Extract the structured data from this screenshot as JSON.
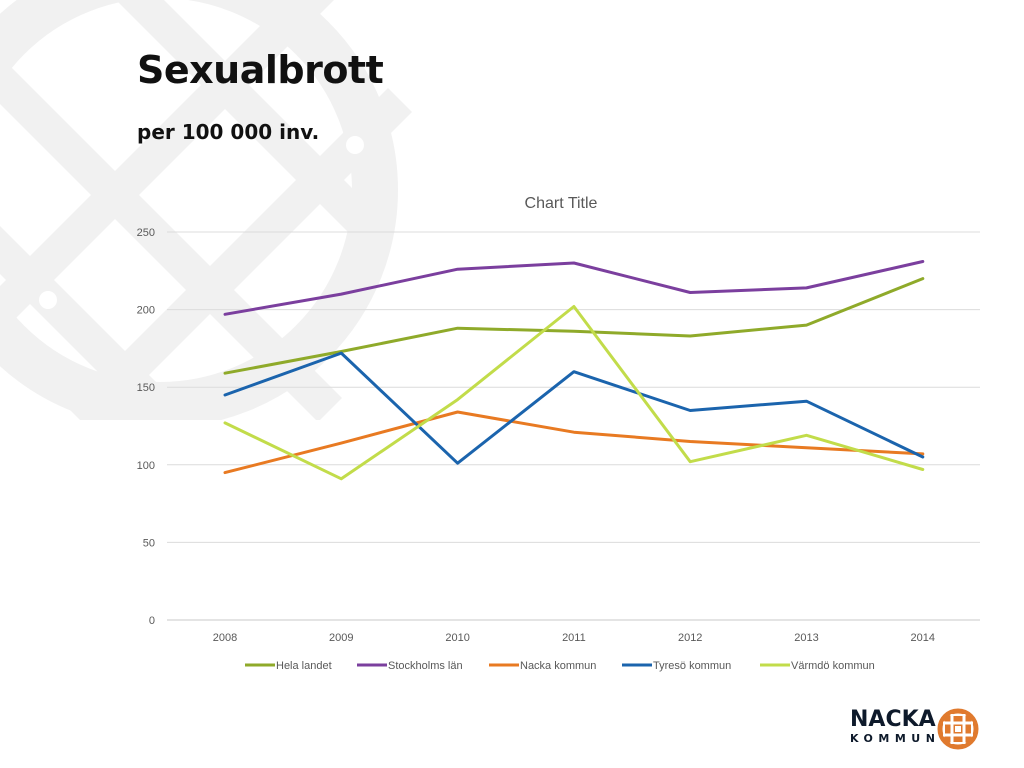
{
  "slide": {
    "title": "Sexualbrott",
    "subtitle": "per 100 000 inv."
  },
  "logo": {
    "line1": "NACKA",
    "line2": "KOMMUN",
    "color": "#e07a2e"
  },
  "chart_data": {
    "type": "line",
    "title": "Chart Title",
    "xlabel": "",
    "ylabel": "",
    "categories": [
      "2008",
      "2009",
      "2010",
      "2011",
      "2012",
      "2013",
      "2014"
    ],
    "ylim": [
      0,
      250
    ],
    "yticks": [
      0,
      50,
      100,
      150,
      200,
      250
    ],
    "grid": true,
    "legend_position": "bottom",
    "series": [
      {
        "name": "Hela landet",
        "color": "#8faa2a",
        "values": [
          159,
          173,
          188,
          186,
          183,
          190,
          220
        ]
      },
      {
        "name": "Stockholms län",
        "color": "#7b3f9e",
        "values": [
          197,
          210,
          226,
          230,
          211,
          214,
          231
        ]
      },
      {
        "name": "Nacka kommun",
        "color": "#e87a22",
        "values": [
          95,
          114,
          134,
          121,
          115,
          111,
          107
        ]
      },
      {
        "name": "Tyresö kommun",
        "color": "#1b64ad",
        "values": [
          145,
          172,
          101,
          160,
          135,
          141,
          105
        ]
      },
      {
        "name": "Värmdö kommun",
        "color": "#c2dc4a",
        "values": [
          127,
          91,
          142,
          202,
          102,
          119,
          97
        ]
      }
    ]
  }
}
